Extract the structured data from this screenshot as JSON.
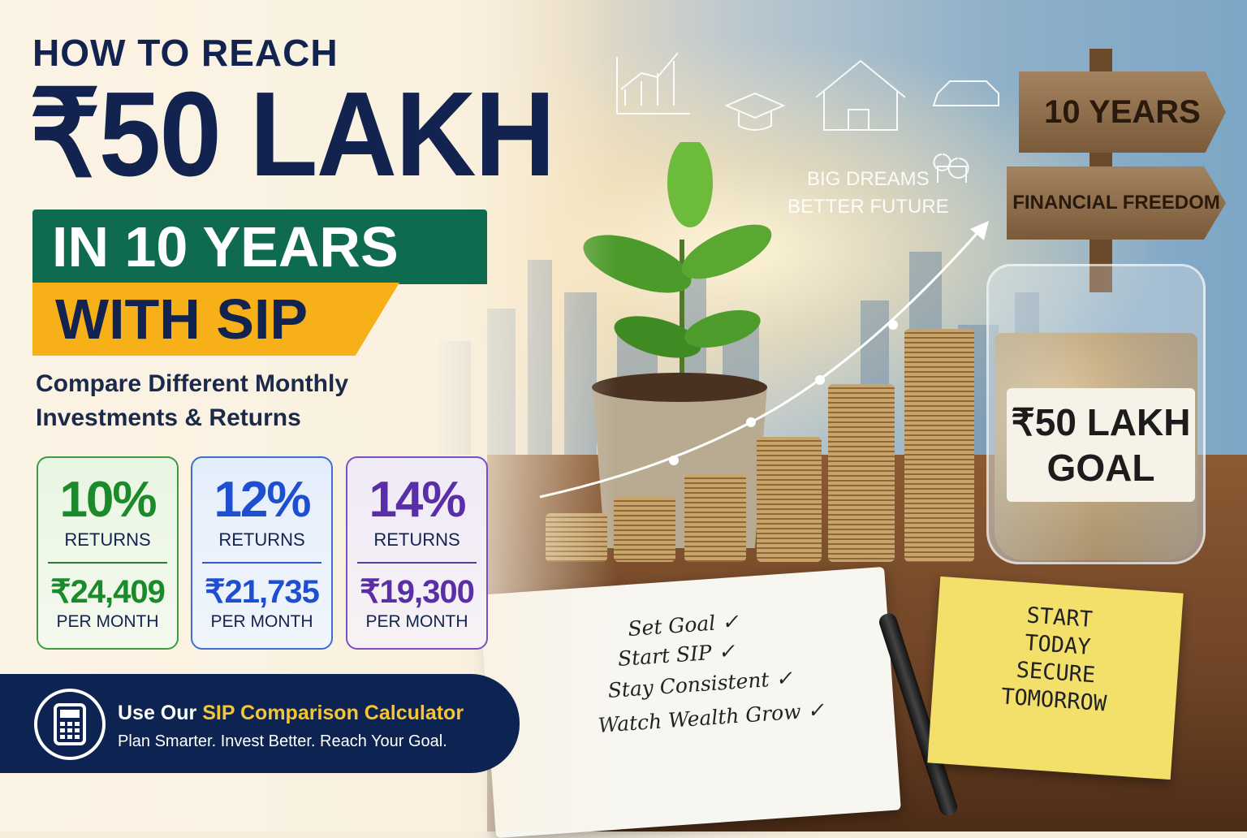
{
  "headline": {
    "line1": "HOW TO REACH",
    "line2": "₹50 LAKH",
    "line3": "IN 10 YEARS",
    "line4": "WITH SIP"
  },
  "subtitle": {
    "line1": "Compare Different Monthly",
    "line2": "Investments & Returns"
  },
  "cards": [
    {
      "rate": "10%",
      "returns_label": "RETURNS",
      "amount": "₹24,409",
      "period": "PER MONTH",
      "color": "#1a8a2a"
    },
    {
      "rate": "12%",
      "returns_label": "RETURNS",
      "amount": "₹21,735",
      "period": "PER MONTH",
      "color": "#1e4fd0"
    },
    {
      "rate": "14%",
      "returns_label": "RETURNS",
      "amount": "₹19,300",
      "period": "PER MONTH",
      "color": "#5a2ea6"
    }
  ],
  "cta": {
    "prefix": "Use Our ",
    "highlight": "SIP Comparison Calculator",
    "tagline": "Plan Smarter. Invest Better. Reach Your Goal.",
    "icon": "calculator-icon"
  },
  "scene": {
    "sign_top": "10 YEARS",
    "sign_bottom": "FINANCIAL FREEDOM",
    "dream_line1": "BIG DREAMS",
    "dream_line2": "BETTER FUTURE",
    "jar_label_line1": "₹50 LAKH",
    "jar_label_line2": "GOAL",
    "checklist": [
      "Set Goal ✓",
      "Start SIP ✓",
      "Stay Consistent ✓",
      "Watch Wealth Grow ✓"
    ],
    "sticky_note": [
      "START",
      "TODAY",
      "SECURE",
      "TOMORROW"
    ]
  },
  "colors": {
    "navy": "#13234f",
    "green_banner": "#0f6b50",
    "yellow_banner": "#f8b018",
    "cta_highlight": "#f6c531"
  }
}
